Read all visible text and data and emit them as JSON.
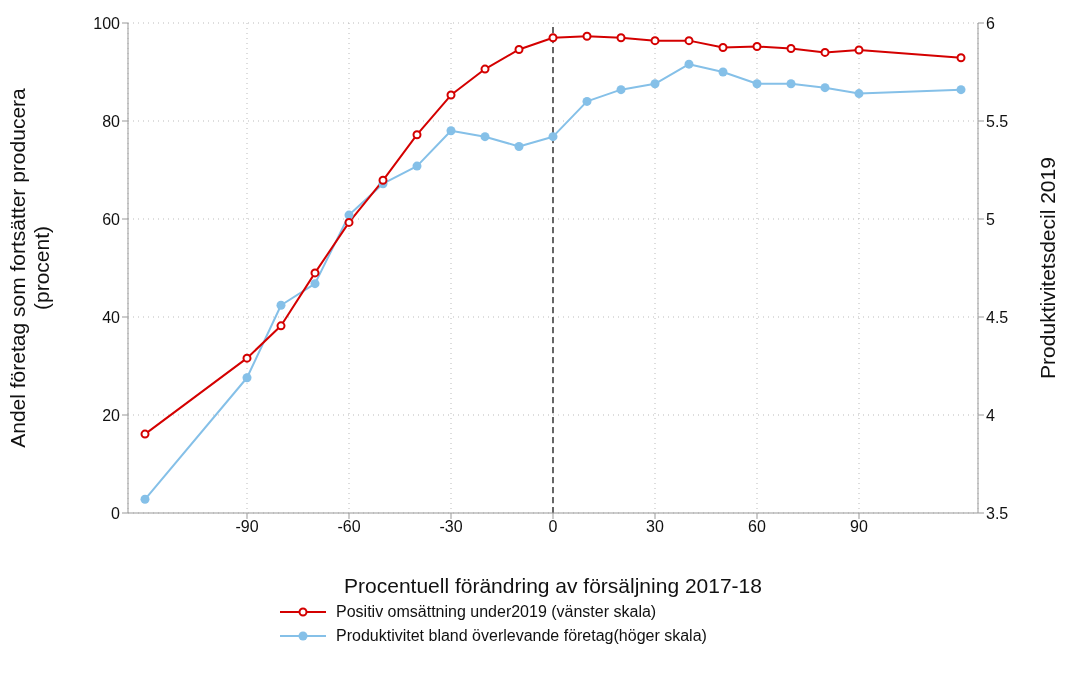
{
  "chart_data": {
    "type": "line",
    "xlabel": "Procentuell förändring av försäljning 2017-18",
    "ylabel": "Andel företag som fortsätter producera\n(procent)",
    "y2label": "Produktivitetsdecil 2019",
    "x": [
      -120,
      -90,
      -80,
      -70,
      -60,
      -50,
      -40,
      -30,
      -20,
      -10,
      0,
      10,
      20,
      30,
      40,
      50,
      60,
      70,
      80,
      90,
      120
    ],
    "series": [
      {
        "name": "Positiv omsättning under2019 (vänster skala)",
        "color": "#d40000",
        "values": [
          16.1,
          31.6,
          38.2,
          49.0,
          59.3,
          67.9,
          77.2,
          85.3,
          90.6,
          94.6,
          97.0,
          97.3,
          97.0,
          96.4,
          96.4,
          95.0,
          95.2,
          94.8,
          94.0,
          94.5,
          92.9
        ]
      },
      {
        "name": "Produktivitet bland överlevande företag(höger skala)",
        "color": "#85c0e8",
        "axis": "y2",
        "values": [
          3.57,
          4.19,
          4.56,
          4.67,
          5.02,
          5.18,
          5.27,
          5.45,
          5.42,
          5.37,
          5.42,
          5.6,
          5.66,
          5.69,
          5.79,
          5.75,
          5.69,
          5.69,
          5.67,
          5.64,
          5.66
        ]
      }
    ],
    "xlim": [
      -125,
      125
    ],
    "xticks": [
      -90,
      -60,
      -30,
      0,
      30,
      60,
      90
    ],
    "ylim": [
      0,
      100
    ],
    "yticks": [
      0,
      20,
      40,
      60,
      80,
      100
    ],
    "y2lim": [
      3.5,
      6
    ],
    "y2ticks": [
      3.5,
      4,
      4.5,
      5,
      5.5,
      6
    ],
    "ref_lines": [
      {
        "axis": "x",
        "value": 0,
        "color": "#666666",
        "line_style": "dashed"
      }
    ],
    "grid": true,
    "legend": "bottom",
    "marker": "circle",
    "line_style": "solid"
  }
}
